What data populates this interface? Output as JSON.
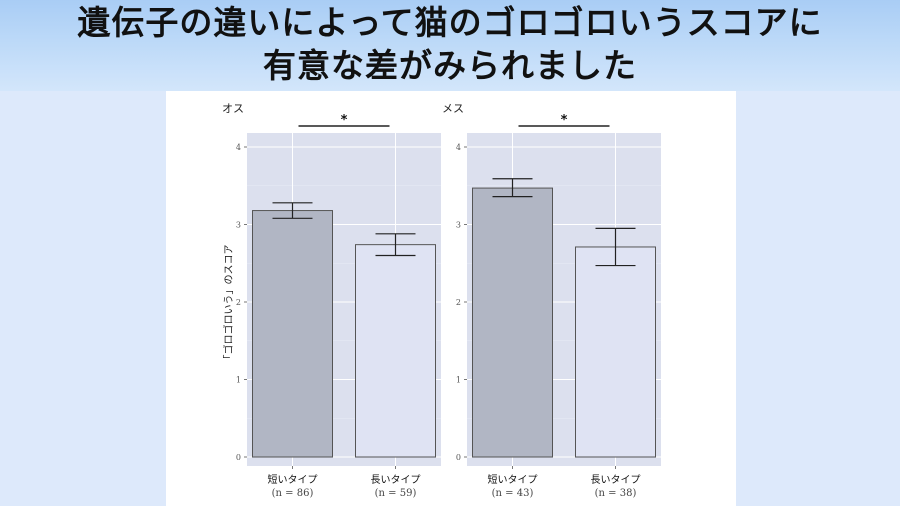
{
  "banner": {
    "line1": "遺伝子の違いによって猫のゴロゴロいうスコアに",
    "line2": "有意な差がみられました"
  },
  "colors": {
    "banner_top": "#a9cdf5",
    "banner_bottom": "#d3e6fb",
    "page_bg": "#dde9fb",
    "plot_bg": "#dce0ee",
    "bar_short": "#b1b6c4",
    "bar_long": "#dfe3f3"
  },
  "chart_data": [
    {
      "type": "bar",
      "title": "オス",
      "ylabel": "「ゴロゴロいう」のスコア",
      "ylim": [
        0,
        4
      ],
      "yticks": [
        "0",
        "1",
        "2",
        "3",
        "4"
      ],
      "categories": [
        "短いタイプ",
        "長いタイプ"
      ],
      "n_labels": [
        "(n = 86)",
        "(n = 59)"
      ],
      "values": [
        3.18,
        2.74
      ],
      "error_low": [
        3.08,
        2.6
      ],
      "error_high": [
        3.28,
        2.88
      ],
      "significance": "*",
      "grid": true
    },
    {
      "type": "bar",
      "title": "メス",
      "ylabel": "",
      "ylim": [
        0,
        4
      ],
      "yticks": [
        "0",
        "1",
        "2",
        "3",
        "4"
      ],
      "categories": [
        "短いタイプ",
        "長いタイプ"
      ],
      "n_labels": [
        "(n = 43)",
        "(n = 38)"
      ],
      "values": [
        3.47,
        2.71
      ],
      "error_low": [
        3.36,
        2.47
      ],
      "error_high": [
        3.59,
        2.95
      ],
      "significance": "*",
      "grid": true
    }
  ]
}
